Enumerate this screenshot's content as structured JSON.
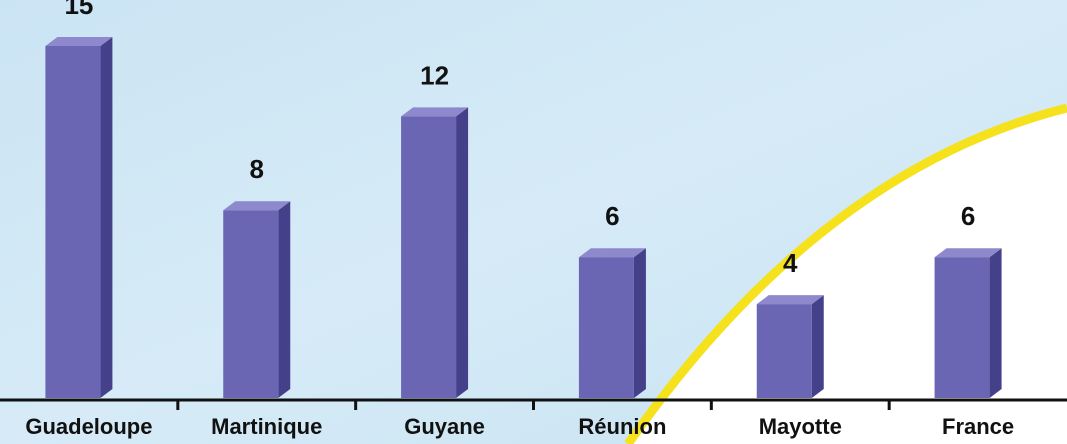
{
  "chart_data": {
    "type": "bar",
    "categories": [
      "Guadeloupe",
      "Martinique",
      "Guyane",
      "Réunion",
      "Mayotte",
      "France"
    ],
    "values": [
      15,
      8,
      12,
      6,
      4,
      6
    ],
    "color": "#6b66b3"
  }
}
